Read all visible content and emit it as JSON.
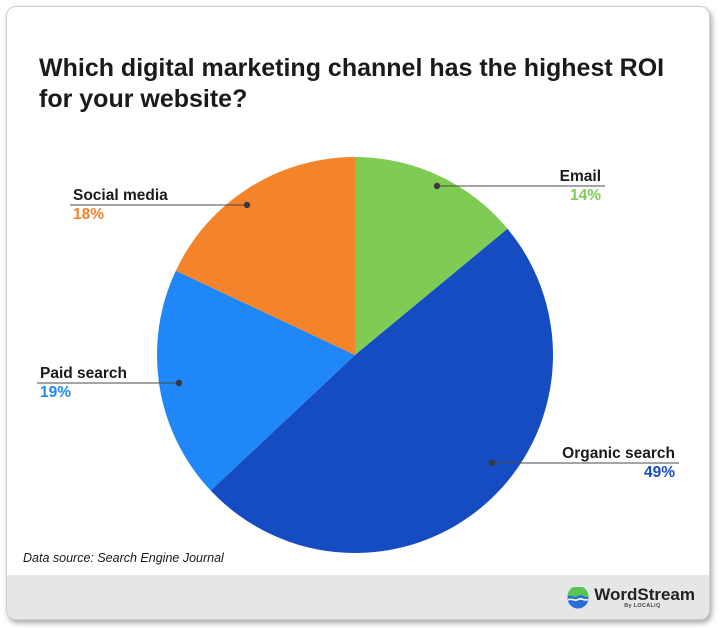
{
  "header": {
    "title": "Which digital marketing channel has the highest ROI for your website?"
  },
  "chart_data": {
    "type": "pie",
    "title": "Which digital marketing channel has the highest ROI for your website?",
    "slices": [
      {
        "label": "Email",
        "value": 14,
        "value_label": "14%",
        "color": "#7fcc55"
      },
      {
        "label": "Organic search",
        "value": 49,
        "value_label": "49%",
        "color": "#164cc2"
      },
      {
        "label": "Paid search",
        "value": 19,
        "value_label": "19%",
        "color": "#1f87f7"
      },
      {
        "label": "Social media",
        "value": 18,
        "value_label": "18%",
        "color": "#f4832a"
      }
    ]
  },
  "footer": {
    "source": "Data source: Search Engine Journal",
    "brand_name": "WordStream",
    "brand_sub": "By LOCALiQ"
  }
}
